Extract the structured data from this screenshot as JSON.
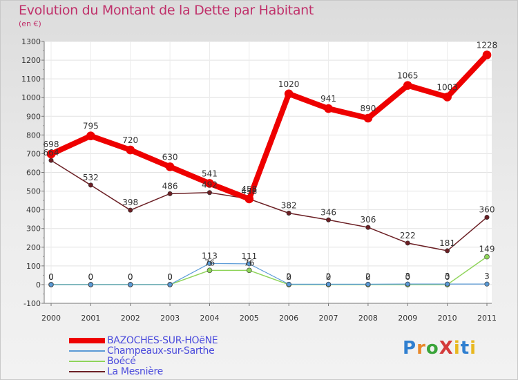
{
  "title": "Evolution du Montant de la Dette par Habitant",
  "subtitle": "(en €)",
  "logo_text": "ProXiti",
  "chart_data": {
    "type": "line",
    "title": "Evolution du Montant de la Dette par Habitant",
    "ylabel": "(en €)",
    "xlabel": "",
    "ylim": [
      -100,
      1300
    ],
    "yticks": [
      -100,
      0,
      100,
      200,
      300,
      400,
      500,
      600,
      700,
      800,
      900,
      1000,
      1100,
      1200,
      1300
    ],
    "categories": [
      "2000",
      "2001",
      "2002",
      "2003",
      "2004",
      "2005",
      "2006",
      "2007",
      "2008",
      "2009",
      "2010",
      "2011"
    ],
    "grid": "horizontal",
    "legend": "bottom-left",
    "series": [
      {
        "name": "La Mesnière",
        "color": "#6b1f24",
        "values": [
          664,
          532,
          398,
          486,
          492,
          458,
          382,
          346,
          306,
          222,
          181,
          360
        ],
        "labels": [
          "664",
          "532",
          "398",
          "486",
          "492",
          "458",
          "382",
          "346",
          "306",
          "222",
          "181",
          "360"
        ]
      },
      {
        "name": "Boécé",
        "color": "#8fd45a",
        "values": [
          0,
          0,
          0,
          0,
          76,
          76,
          0,
          0,
          0,
          0,
          0,
          149
        ],
        "labels": [
          "0",
          "0",
          "0",
          "0",
          "76",
          "76",
          "0",
          "0",
          "0",
          "0",
          "0",
          "149"
        ]
      },
      {
        "name": "Champeaux-sur-Sarthe",
        "color": "#5a9ad6",
        "values": [
          0,
          0,
          0,
          0,
          113,
          111,
          2,
          2,
          2,
          3,
          3,
          3
        ],
        "labels": [
          "0",
          "0",
          "0",
          "0",
          "113",
          "111",
          "2",
          "2",
          "2",
          "3",
          "3",
          "3"
        ]
      },
      {
        "name": "BAZOCHES-SUR-HOëNE",
        "color": "#ee0000",
        "values": [
          698,
          795,
          720,
          630,
          541,
          458,
          1020,
          941,
          890,
          1065,
          1003,
          1228
        ],
        "labels": [
          "698",
          "795",
          "720",
          "630",
          "541",
          "458",
          "1020",
          "941",
          "890",
          "1065",
          "1003",
          "1228"
        ]
      }
    ]
  },
  "legend_items": [
    {
      "name": "BAZOCHES-SUR-HOëNE",
      "color": "#ee0000"
    },
    {
      "name": "Champeaux-sur-Sarthe",
      "color": "#5a9ad6"
    },
    {
      "name": "Boécé",
      "color": "#8fd45a"
    },
    {
      "name": "La Mesnière",
      "color": "#6b1f24"
    }
  ]
}
